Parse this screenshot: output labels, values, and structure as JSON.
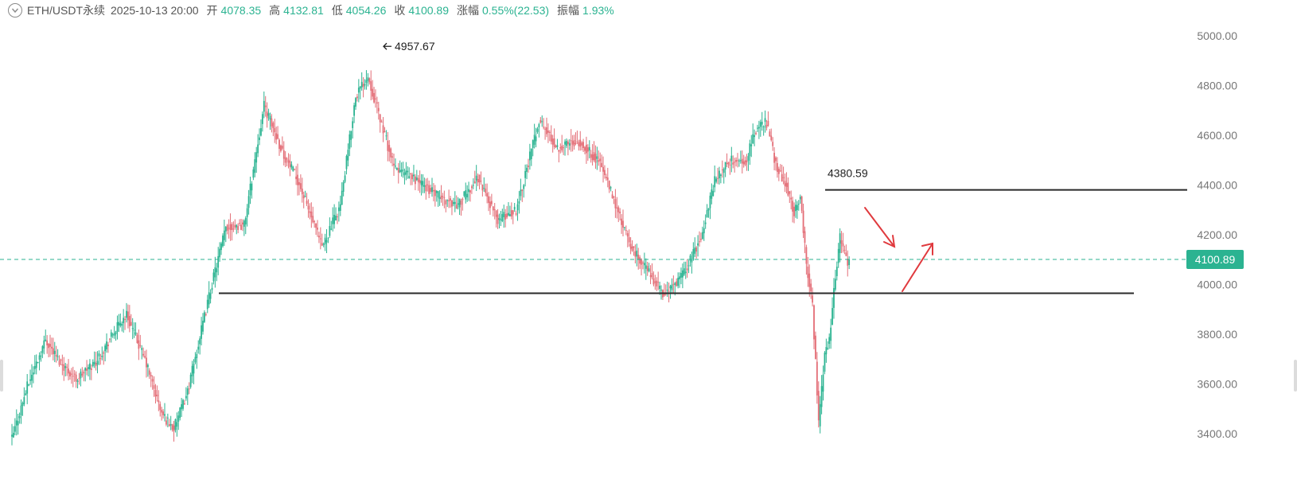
{
  "header": {
    "symbol": "ETH/USDT永续",
    "datetime": "2025-10-13 20:00",
    "open_label": "开",
    "open": "4078.35",
    "high_label": "高",
    "high": "4132.81",
    "low_label": "低",
    "low": "4054.26",
    "close_label": "收",
    "close": "4100.89",
    "change_label": "涨幅",
    "change": "0.55%(22.53)",
    "amplitude_label": "振幅",
    "amplitude": "1.93%"
  },
  "colors": {
    "up": "#2bb391",
    "down": "#e36d76",
    "line": "#2a2a2a",
    "current_price": "#2bb391",
    "arrow": "#e03a3e"
  },
  "chart_data": {
    "type": "candlestick",
    "y_axis": {
      "ticks": [
        "5000.00",
        "4800.00",
        "4600.00",
        "4400.00",
        "4200.00",
        "4000.00",
        "3800.00",
        "3600.00",
        "3400.00"
      ],
      "range": [
        3330,
        5110
      ]
    },
    "current_price": "4100.89",
    "max_label": "4957.67",
    "resistance_label": "4380.59",
    "resistance_value": 4380.59,
    "support_value": 3965,
    "anchors": [
      [
        0,
        3380
      ],
      [
        10,
        3590
      ],
      [
        22,
        3780
      ],
      [
        30,
        3700
      ],
      [
        42,
        3620
      ],
      [
        55,
        3690
      ],
      [
        68,
        3820
      ],
      [
        75,
        3880
      ],
      [
        88,
        3680
      ],
      [
        98,
        3480
      ],
      [
        106,
        3420
      ],
      [
        115,
        3570
      ],
      [
        130,
        3980
      ],
      [
        140,
        4230
      ],
      [
        152,
        4240
      ],
      [
        165,
        4720
      ],
      [
        178,
        4520
      ],
      [
        187,
        4420
      ],
      [
        203,
        4150
      ],
      [
        215,
        4320
      ],
      [
        225,
        4760
      ],
      [
        233,
        4840
      ],
      [
        250,
        4470
      ],
      [
        265,
        4420
      ],
      [
        280,
        4350
      ],
      [
        292,
        4320
      ],
      [
        305,
        4430
      ],
      [
        318,
        4260
      ],
      [
        330,
        4300
      ],
      [
        345,
        4660
      ],
      [
        357,
        4550
      ],
      [
        370,
        4580
      ],
      [
        385,
        4490
      ],
      [
        395,
        4320
      ],
      [
        405,
        4150
      ],
      [
        418,
        4040
      ],
      [
        426,
        3960
      ],
      [
        436,
        4010
      ],
      [
        445,
        4110
      ],
      [
        452,
        4210
      ],
      [
        460,
        4420
      ],
      [
        470,
        4500
      ],
      [
        480,
        4490
      ],
      [
        488,
        4640
      ],
      [
        494,
        4650
      ],
      [
        500,
        4480
      ],
      [
        507,
        4400
      ],
      [
        512,
        4290
      ],
      [
        516,
        4360
      ],
      [
        520,
        4080
      ],
      [
        524,
        3920
      ],
      [
        528,
        3440
      ],
      [
        532,
        3710
      ],
      [
        535,
        3770
      ],
      [
        538,
        3980
      ],
      [
        542,
        4190
      ],
      [
        548,
        4070
      ]
    ]
  }
}
